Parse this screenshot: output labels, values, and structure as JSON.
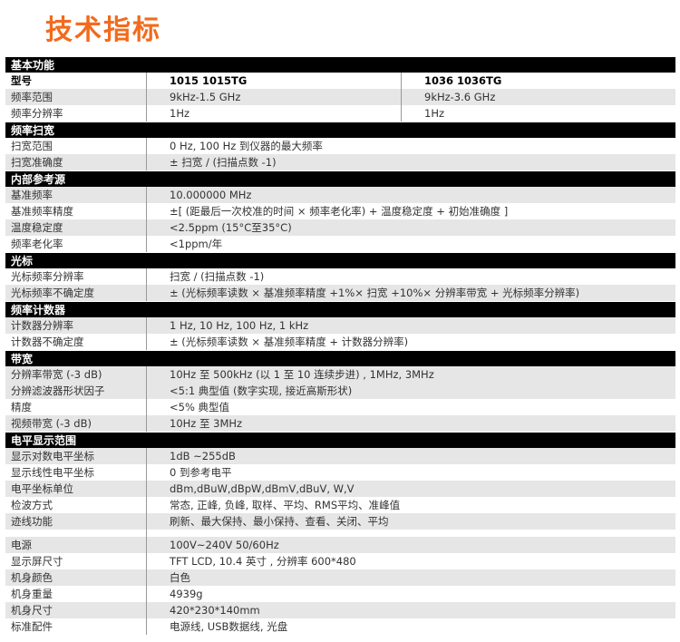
{
  "title": "技术指标",
  "sections": [
    {
      "header": "基本功能",
      "rows": [
        {
          "label": "型号",
          "values": [
            "1015 1015TG",
            "1036 1036TG"
          ],
          "bold": true,
          "shade": false
        },
        {
          "label": "频率范围",
          "values": [
            "9kHz-1.5 GHz",
            "9kHz-3.6 GHz"
          ],
          "shade": true
        },
        {
          "label": "频率分辨率",
          "values": [
            "1Hz",
            "1Hz"
          ],
          "shade": false
        }
      ]
    },
    {
      "header": "频率扫宽",
      "rows": [
        {
          "label": "扫宽范围",
          "values": [
            "0 Hz, 100 Hz 到仪器的最大频率"
          ],
          "shade": false
        },
        {
          "label": "扫宽准确度",
          "values": [
            "± 扫宽 / (扫描点数 -1)"
          ],
          "shade": true
        }
      ]
    },
    {
      "header": "内部参考源",
      "rows": [
        {
          "label": "基准频率",
          "values": [
            "10.000000 MHz"
          ],
          "shade": true
        },
        {
          "label": "基准频率精度",
          "values": [
            "±[ (距最后一次校准的时间 × 频率老化率) + 温度稳定度 + 初始准确度 ]"
          ],
          "shade": false
        },
        {
          "label": "温度稳定度",
          "values": [
            "<2.5ppm (15°C至35°C)"
          ],
          "shade": true
        },
        {
          "label": "频率老化率",
          "values": [
            "<1ppm/年"
          ],
          "shade": false
        }
      ]
    },
    {
      "header": "光标",
      "rows": [
        {
          "label": "光标频率分辨率",
          "values": [
            "扫宽 / (扫描点数 -1)"
          ],
          "shade": false
        },
        {
          "label": "光标频率不确定度",
          "values": [
            "± (光标频率读数 × 基准频率精度 +1%× 扫宽 +10%× 分辨率带宽 + 光标频率分辨率)"
          ],
          "shade": true
        }
      ]
    },
    {
      "header": "频率计数器",
      "rows": [
        {
          "label": "计数器分辨率",
          "values": [
            "1 Hz, 10 Hz, 100 Hz, 1 kHz"
          ],
          "shade": true
        },
        {
          "label": "计数器不确定度",
          "values": [
            "± (光标频率读数 × 基准频率精度 + 计数器分辨率)"
          ],
          "shade": false
        }
      ]
    },
    {
      "header": "带宽",
      "rows": [
        {
          "label": "分辨率带宽 (-3 dB)",
          "values": [
            "10Hz 至 500kHz (以 1 至 10 连续步进) , 1MHz, 3MHz"
          ],
          "shade": true
        },
        {
          "label": "分辨滤波器形状因子",
          "values": [
            "<5:1 典型值 (数字实现, 接近高斯形状)"
          ],
          "shade": true
        },
        {
          "label": "精度",
          "values": [
            "<5% 典型值"
          ],
          "shade": false
        },
        {
          "label": "视频带宽 (-3 dB)",
          "values": [
            "10Hz 至 3MHz"
          ],
          "shade": true
        }
      ]
    },
    {
      "header": "电平显示范围",
      "rows": [
        {
          "label": "显示对数电平坐标",
          "values": [
            "1dB ~255dB"
          ],
          "shade": true
        },
        {
          "label": "显示线性电平坐标",
          "values": [
            "0 到参考电平"
          ],
          "shade": false
        },
        {
          "label": "电平坐标单位",
          "values": [
            "dBm,dBuW,dBpW,dBmV,dBuV, W,V"
          ],
          "shade": true
        },
        {
          "label": "检波方式",
          "values": [
            "常态, 正峰, 负峰, 取样、平均、RMS平均、准峰值"
          ],
          "shade": false
        },
        {
          "label": "迹线功能",
          "values": [
            "刷新、最大保持、最小保持、查看、关闭、平均"
          ],
          "shade": true
        }
      ]
    },
    {
      "header": "",
      "rows": [
        {
          "label": "电源",
          "values": [
            "100V~240V 50/60Hz"
          ],
          "shade": true
        },
        {
          "label": "显示屏尺寸",
          "values": [
            "TFT LCD, 10.4 英寸 , 分辨率 600*480"
          ],
          "shade": false
        },
        {
          "label": "机身颜色",
          "values": [
            "白色"
          ],
          "shade": true
        },
        {
          "label": "机身重量",
          "values": [
            "4939g"
          ],
          "shade": false
        },
        {
          "label": "机身尺寸",
          "values": [
            "420*230*140mm"
          ],
          "shade": true
        },
        {
          "label": "标准配件",
          "values": [
            "电源线, USB数据线, 光盘"
          ],
          "shade": false
        }
      ]
    }
  ]
}
